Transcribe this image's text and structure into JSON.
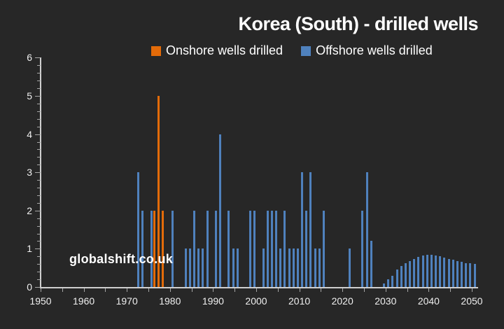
{
  "chart_data": {
    "type": "bar",
    "title": "Korea (South) - drilled wells",
    "watermark": "globalshift.co.uk",
    "legend_position": "top",
    "grid": false,
    "x_axis": {
      "min": 1950,
      "max": 2051.3,
      "tick_step": 5,
      "label_step": 10,
      "tick_labels": [
        "1950",
        "1960",
        "1970",
        "1980",
        "1990",
        "2000",
        "2010",
        "2020",
        "2030",
        "2040",
        "2050"
      ]
    },
    "y_axis": {
      "min": 0,
      "max": 6,
      "tick_step": 1,
      "minor_step": 0.2,
      "tick_labels": [
        "0",
        "1",
        "2",
        "3",
        "4",
        "5",
        "6"
      ]
    },
    "series": [
      {
        "name": "Onshore wells drilled",
        "color": "#e36b09",
        "cluster_slot": "left",
        "points": [
          [
            1976,
            2
          ],
          [
            1977,
            5
          ],
          [
            1978,
            2
          ]
        ]
      },
      {
        "name": "Offshore wells drilled",
        "color": "#4f81bd",
        "cluster_slot": "right",
        "points": [
          [
            1972,
            3
          ],
          [
            1973,
            2
          ],
          [
            1975,
            2
          ],
          [
            1980,
            2
          ],
          [
            1983,
            1
          ],
          [
            1984,
            1
          ],
          [
            1985,
            2
          ],
          [
            1986,
            1
          ],
          [
            1987,
            1
          ],
          [
            1988,
            2
          ],
          [
            1990,
            2
          ],
          [
            1991,
            4
          ],
          [
            1993,
            2
          ],
          [
            1994,
            1
          ],
          [
            1995,
            1
          ],
          [
            1998,
            2
          ],
          [
            1999,
            2
          ],
          [
            2001,
            1
          ],
          [
            2002,
            2
          ],
          [
            2003,
            2
          ],
          [
            2004,
            2
          ],
          [
            2005,
            1
          ],
          [
            2006,
            2
          ],
          [
            2007,
            1
          ],
          [
            2008,
            1
          ],
          [
            2009,
            1
          ],
          [
            2010,
            3
          ],
          [
            2011,
            2
          ],
          [
            2012,
            3
          ],
          [
            2013,
            1
          ],
          [
            2014,
            1
          ],
          [
            2015,
            2
          ],
          [
            2021,
            1
          ],
          [
            2024,
            2
          ],
          [
            2025,
            3
          ],
          [
            2026,
            1.2
          ],
          [
            2029,
            0.1
          ],
          [
            2030,
            0.2
          ],
          [
            2031,
            0.3
          ],
          [
            2032,
            0.45
          ],
          [
            2033,
            0.55
          ],
          [
            2034,
            0.63
          ],
          [
            2035,
            0.68
          ],
          [
            2036,
            0.74
          ],
          [
            2037,
            0.78
          ],
          [
            2038,
            0.82
          ],
          [
            2039,
            0.84
          ],
          [
            2040,
            0.84
          ],
          [
            2041,
            0.82
          ],
          [
            2042,
            0.8
          ],
          [
            2043,
            0.77
          ],
          [
            2044,
            0.74
          ],
          [
            2045,
            0.71
          ],
          [
            2046,
            0.68
          ],
          [
            2047,
            0.66
          ],
          [
            2048,
            0.63
          ],
          [
            2049,
            0.62
          ],
          [
            2050,
            0.6
          ]
        ]
      }
    ]
  },
  "colors": {
    "background": "#272727",
    "axis_line": "#cfcfcf",
    "tick": "#a6a6a6",
    "tick_label": "#efefef",
    "title": "#ffffff"
  }
}
